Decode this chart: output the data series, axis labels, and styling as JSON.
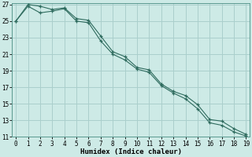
{
  "xlabel": "Humidex (Indice chaleur)",
  "x": [
    0,
    1,
    2,
    3,
    4,
    5,
    6,
    7,
    8,
    9,
    10,
    11,
    12,
    13,
    14,
    15,
    16,
    17,
    18,
    19
  ],
  "line1_y": [
    25.0,
    27.0,
    26.8,
    26.4,
    26.6,
    25.3,
    25.1,
    23.2,
    21.3,
    20.7,
    19.4,
    19.1,
    17.4,
    16.5,
    16.0,
    14.9,
    13.1,
    12.9,
    12.0,
    11.3
  ],
  "line2_y": [
    25.0,
    26.8,
    26.0,
    26.2,
    26.5,
    25.0,
    24.8,
    22.6,
    21.0,
    20.3,
    19.2,
    18.8,
    17.2,
    16.3,
    15.6,
    14.4,
    12.7,
    12.4,
    11.6,
    11.1
  ],
  "line_color": "#2e6b5e",
  "bg_color": "#cdeae6",
  "grid_color": "#aacfcc",
  "spine_color": "#5a9990",
  "ylim": [
    11,
    27
  ],
  "xlim": [
    -0.3,
    19.3
  ],
  "yticks": [
    11,
    13,
    15,
    17,
    19,
    21,
    23,
    25,
    27
  ],
  "xticks": [
    0,
    1,
    2,
    3,
    4,
    5,
    6,
    7,
    8,
    9,
    10,
    11,
    12,
    13,
    14,
    15,
    16,
    17,
    18,
    19
  ],
  "xlabel_fontsize": 6.5,
  "tick_fontsize": 5.5
}
